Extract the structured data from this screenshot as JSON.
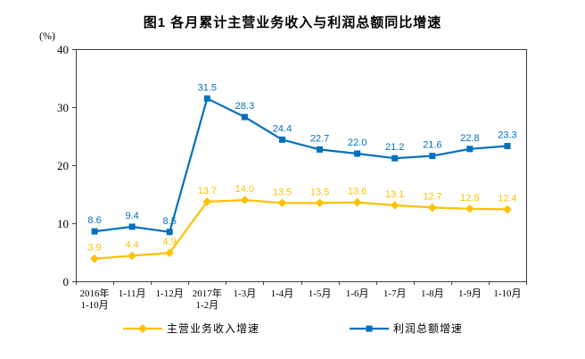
{
  "header": {
    "title": "图1  各月累计主营业务收入与利润总额同比增速"
  },
  "chart_data": {
    "type": "line",
    "title": "图1  各月累计主营业务收入与利润总额同比增速",
    "xlabel": "",
    "ylabel": "(%)",
    "ylim": [
      0,
      40
    ],
    "yticks": [
      0,
      10,
      20,
      30,
      40
    ],
    "grid": false,
    "legend_position": "bottom",
    "label_decimals": 1,
    "categories": [
      "2016年\n1-10月",
      "1-11月",
      "1-12月",
      "2017年\n1-2月",
      "1-3月",
      "1-4月",
      "1-5月",
      "1-6月",
      "1-7月",
      "1-8月",
      "1-9月",
      "1-10月"
    ],
    "series": [
      {
        "name": "主营业务收入增速",
        "color": "#FFC000",
        "marker": "diamond",
        "values": [
          3.9,
          4.4,
          4.9,
          13.7,
          14.0,
          13.5,
          13.5,
          13.6,
          13.1,
          12.7,
          12.5,
          12.4
        ]
      },
      {
        "name": "利润总额增速",
        "color": "#0070C0",
        "marker": "square",
        "values": [
          8.6,
          9.4,
          8.5,
          31.5,
          28.3,
          24.4,
          22.7,
          22.0,
          21.2,
          21.6,
          22.8,
          23.3
        ]
      }
    ]
  }
}
